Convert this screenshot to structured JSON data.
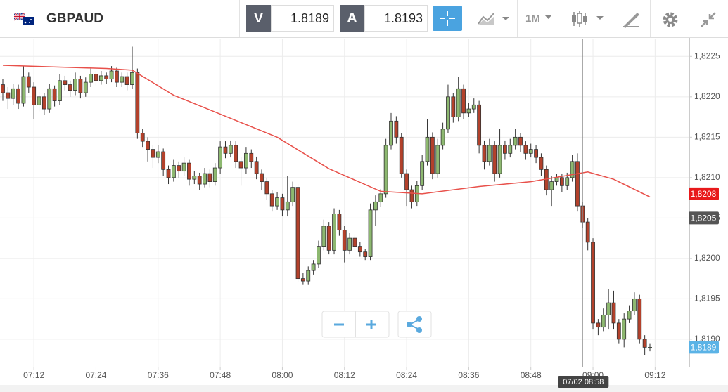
{
  "header": {
    "symbol": "GBPAUD",
    "bid_label": "V",
    "bid": 1.8189,
    "ask_label": "A",
    "ask": 1.8193,
    "interval": "1M"
  },
  "chart_data": {
    "type": "candlestick",
    "x": [
      "07:06",
      "07:07",
      "07:08",
      "07:09",
      "07:10",
      "07:11",
      "07:12",
      "07:13",
      "07:14",
      "07:15",
      "07:16",
      "07:17",
      "07:18",
      "07:19",
      "07:20",
      "07:21",
      "07:22",
      "07:23",
      "07:24",
      "07:25",
      "07:26",
      "07:27",
      "07:28",
      "07:29",
      "07:30",
      "07:31",
      "07:32",
      "07:33",
      "07:34",
      "07:35",
      "07:36",
      "07:37",
      "07:38",
      "07:39",
      "07:40",
      "07:41",
      "07:42",
      "07:43",
      "07:44",
      "07:45",
      "07:46",
      "07:47",
      "07:48",
      "07:49",
      "07:50",
      "07:51",
      "07:52",
      "07:53",
      "07:54",
      "07:55",
      "07:56",
      "07:57",
      "07:58",
      "07:59",
      "08:00",
      "08:01",
      "08:02",
      "08:03",
      "08:04",
      "08:05",
      "08:06",
      "08:07",
      "08:08",
      "08:09",
      "08:10",
      "08:11",
      "08:12",
      "08:13",
      "08:14",
      "08:15",
      "08:16",
      "08:17",
      "08:18",
      "08:19",
      "08:20",
      "08:21",
      "08:22",
      "08:23",
      "08:24",
      "08:25",
      "08:26",
      "08:27",
      "08:28",
      "08:29",
      "08:30",
      "08:31",
      "08:32",
      "08:33",
      "08:34",
      "08:35",
      "08:36",
      "08:37",
      "08:38",
      "08:39",
      "08:40",
      "08:41",
      "08:42",
      "08:43",
      "08:44",
      "08:45",
      "08:46",
      "08:47",
      "08:48",
      "08:49",
      "08:50",
      "08:51",
      "08:52",
      "08:53",
      "08:54",
      "08:55",
      "08:56",
      "08:57",
      "08:58",
      "08:59",
      "09:00",
      "09:01",
      "09:02",
      "09:03",
      "09:04",
      "09:05",
      "09:06",
      "09:07",
      "09:08",
      "09:09",
      "09:10",
      "09:11"
    ],
    "series": [
      {
        "type": "candlestick",
        "color_up": "#8db870",
        "color_down": "#b3412b",
        "values": [
          [
            1.82215,
            1.82222,
            1.82195,
            1.82205
          ],
          [
            1.82205,
            1.82212,
            1.82185,
            1.82198
          ],
          [
            1.82198,
            1.82216,
            1.8219,
            1.8221
          ],
          [
            1.8221,
            1.82215,
            1.82185,
            1.82192
          ],
          [
            1.82192,
            1.82238,
            1.82188,
            1.82225
          ],
          [
            1.82225,
            1.8223,
            1.82205,
            1.82212
          ],
          [
            1.82212,
            1.82218,
            1.82172,
            1.8219
          ],
          [
            1.8219,
            1.82206,
            1.82182,
            1.822
          ],
          [
            1.822,
            1.82205,
            1.82178,
            1.82185
          ],
          [
            1.82185,
            1.82216,
            1.8218,
            1.8221
          ],
          [
            1.8221,
            1.82214,
            1.82188,
            1.82195
          ],
          [
            1.82195,
            1.82228,
            1.8219,
            1.8222
          ],
          [
            1.8222,
            1.82226,
            1.82208,
            1.82215
          ],
          [
            1.82215,
            1.8222,
            1.822,
            1.82208
          ],
          [
            1.82208,
            1.8223,
            1.82202,
            1.82222
          ],
          [
            1.82222,
            1.82226,
            1.82198,
            1.82205
          ],
          [
            1.82205,
            1.82224,
            1.822,
            1.82218
          ],
          [
            1.82218,
            1.82235,
            1.82212,
            1.82228
          ],
          [
            1.82228,
            1.82232,
            1.82214,
            1.8222
          ],
          [
            1.8222,
            1.82232,
            1.82215,
            1.82226
          ],
          [
            1.82226,
            1.8223,
            1.82216,
            1.82222
          ],
          [
            1.82222,
            1.82238,
            1.82218,
            1.82232
          ],
          [
            1.82232,
            1.82236,
            1.82212,
            1.82218
          ],
          [
            1.82218,
            1.8223,
            1.82212,
            1.82225
          ],
          [
            1.82225,
            1.8223,
            1.82208,
            1.82215
          ],
          [
            1.82215,
            1.82262,
            1.8221,
            1.8223
          ],
          [
            1.8223,
            1.82235,
            1.82148,
            1.82155
          ],
          [
            1.82155,
            1.8216,
            1.82138,
            1.82145
          ],
          [
            1.82145,
            1.8215,
            1.8212,
            1.82135
          ],
          [
            1.82135,
            1.8214,
            1.82112,
            1.82125
          ],
          [
            1.82125,
            1.8214,
            1.82118,
            1.82132
          ],
          [
            1.82132,
            1.82136,
            1.82102,
            1.8211
          ],
          [
            1.8211,
            1.82115,
            1.82092,
            1.821
          ],
          [
            1.821,
            1.82122,
            1.82095,
            1.82115
          ],
          [
            1.82115,
            1.8212,
            1.821,
            1.82108
          ],
          [
            1.82108,
            1.82125,
            1.82102,
            1.82118
          ],
          [
            1.82118,
            1.82122,
            1.8209,
            1.82098
          ],
          [
            1.82098,
            1.82108,
            1.82092,
            1.82102
          ],
          [
            1.82102,
            1.82106,
            1.82085,
            1.82092
          ],
          [
            1.82092,
            1.82112,
            1.82088,
            1.82105
          ],
          [
            1.82105,
            1.8211,
            1.82088,
            1.82095
          ],
          [
            1.82095,
            1.82118,
            1.8209,
            1.82112
          ],
          [
            1.82112,
            1.82145,
            1.82105,
            1.82138
          ],
          [
            1.82138,
            1.82145,
            1.82124,
            1.8213
          ],
          [
            1.8213,
            1.82146,
            1.82125,
            1.8214
          ],
          [
            1.8214,
            1.82145,
            1.82112,
            1.8212
          ],
          [
            1.8212,
            1.82126,
            1.8209,
            1.82112
          ],
          [
            1.82112,
            1.82138,
            1.82105,
            1.8213
          ],
          [
            1.8213,
            1.82135,
            1.82112,
            1.8212
          ],
          [
            1.8212,
            1.82126,
            1.82098,
            1.82105
          ],
          [
            1.82105,
            1.8211,
            1.82085,
            1.82095
          ],
          [
            1.82095,
            1.821,
            1.82072,
            1.8208
          ],
          [
            1.8208,
            1.82085,
            1.82058,
            1.82065
          ],
          [
            1.82065,
            1.82082,
            1.8206,
            1.82075
          ],
          [
            1.82075,
            1.8208,
            1.82052,
            1.8206
          ],
          [
            1.8206,
            1.82102,
            1.82052,
            1.8207
          ],
          [
            1.8207,
            1.82095,
            1.82065,
            1.82088
          ],
          [
            1.82088,
            1.82092,
            1.8197,
            1.81975
          ],
          [
            1.81975,
            1.81982,
            1.81968,
            1.81972
          ],
          [
            1.81972,
            1.8199,
            1.81968,
            1.81985
          ],
          [
            1.81985,
            1.81998,
            1.8198,
            1.81993
          ],
          [
            1.81993,
            1.82022,
            1.81988,
            1.82015
          ],
          [
            1.82015,
            1.82048,
            1.8201,
            1.8204
          ],
          [
            1.8204,
            1.82045,
            1.82005,
            1.8201
          ],
          [
            1.8201,
            1.82062,
            1.82005,
            1.82055
          ],
          [
            1.82055,
            1.8206,
            1.82028,
            1.82035
          ],
          [
            1.82035,
            1.8204,
            1.81995,
            1.8201
          ],
          [
            1.8201,
            1.82032,
            1.82005,
            1.82025
          ],
          [
            1.82025,
            1.8203,
            1.8201,
            1.82015
          ],
          [
            1.82015,
            1.8202,
            1.82002,
            1.82008
          ],
          [
            1.82008,
            1.82012,
            1.81998,
            1.82002
          ],
          [
            1.82002,
            1.82068,
            1.81998,
            1.8206
          ],
          [
            1.8206,
            1.82078,
            1.8204,
            1.8207
          ],
          [
            1.8207,
            1.82086,
            1.82064,
            1.8208
          ],
          [
            1.8208,
            1.82148,
            1.82075,
            1.8214
          ],
          [
            1.8214,
            1.8218,
            1.82135,
            1.8217
          ],
          [
            1.8217,
            1.82176,
            1.82142,
            1.8215
          ],
          [
            1.8215,
            1.82155,
            1.821,
            1.82105
          ],
          [
            1.82105,
            1.8211,
            1.82065,
            1.82085
          ],
          [
            1.82085,
            1.8209,
            1.82062,
            1.8207
          ],
          [
            1.8207,
            1.82096,
            1.82065,
            1.8209
          ],
          [
            1.8209,
            1.82128,
            1.82085,
            1.8212
          ],
          [
            1.8212,
            1.82172,
            1.82115,
            1.8215
          ],
          [
            1.8215,
            1.82156,
            1.82098,
            1.82105
          ],
          [
            1.82105,
            1.82148,
            1.821,
            1.8214
          ],
          [
            1.8214,
            1.82168,
            1.82135,
            1.8216
          ],
          [
            1.8216,
            1.82215,
            1.82155,
            1.822
          ],
          [
            1.822,
            1.82205,
            1.82168,
            1.82175
          ],
          [
            1.82175,
            1.82225,
            1.8217,
            1.8221
          ],
          [
            1.8221,
            1.82215,
            1.82172,
            1.8218
          ],
          [
            1.8218,
            1.82192,
            1.82175,
            1.82185
          ],
          [
            1.82185,
            1.82198,
            1.8218,
            1.8219
          ],
          [
            1.8219,
            1.82195,
            1.8213,
            1.8214
          ],
          [
            1.8214,
            1.82146,
            1.8211,
            1.8212
          ],
          [
            1.8212,
            1.82148,
            1.82115,
            1.8214
          ],
          [
            1.8214,
            1.82145,
            1.82095,
            1.82105
          ],
          [
            1.82105,
            1.8216,
            1.821,
            1.8214
          ],
          [
            1.8214,
            1.82146,
            1.82122,
            1.8213
          ],
          [
            1.8213,
            1.82148,
            1.82125,
            1.8214
          ],
          [
            1.8214,
            1.8216,
            1.82135,
            1.8215
          ],
          [
            1.8215,
            1.82155,
            1.82132,
            1.8214
          ],
          [
            1.8214,
            1.82145,
            1.82122,
            1.8213
          ],
          [
            1.8213,
            1.82142,
            1.82125,
            1.82135
          ],
          [
            1.82135,
            1.8214,
            1.82118,
            1.82125
          ],
          [
            1.82125,
            1.8213,
            1.82102,
            1.8211
          ],
          [
            1.8211,
            1.82115,
            1.82078,
            1.82085
          ],
          [
            1.82085,
            1.82102,
            1.82065,
            1.82095
          ],
          [
            1.82095,
            1.82105,
            1.8209,
            1.821
          ],
          [
            1.821,
            1.82105,
            1.82082,
            1.8209
          ],
          [
            1.8209,
            1.82106,
            1.82085,
            1.821
          ],
          [
            1.821,
            1.82128,
            1.82095,
            1.8212
          ],
          [
            1.8212,
            1.8213,
            1.82058,
            1.82065
          ],
          [
            1.82065,
            1.8207,
            1.82038,
            1.82045
          ],
          [
            1.82045,
            1.8205,
            1.8201,
            1.8202
          ],
          [
            1.8202,
            1.82025,
            1.81912,
            1.8192
          ],
          [
            1.8192,
            1.81925,
            1.81905,
            1.81915
          ],
          [
            1.81915,
            1.81938,
            1.8191,
            1.8193
          ],
          [
            1.8193,
            1.81962,
            1.81912,
            1.81945
          ],
          [
            1.81945,
            1.8196,
            1.81912,
            1.8192
          ],
          [
            1.8192,
            1.81925,
            1.81895,
            1.819
          ],
          [
            1.819,
            1.81932,
            1.8189,
            1.81925
          ],
          [
            1.81925,
            1.81942,
            1.8192,
            1.81935
          ],
          [
            1.81935,
            1.81958,
            1.8193,
            1.8195
          ],
          [
            1.8195,
            1.81955,
            1.81895,
            1.819
          ],
          [
            1.819,
            1.81905,
            1.8188,
            1.8189
          ],
          [
            1.8189,
            1.81895,
            1.81885,
            1.8189
          ]
        ]
      },
      {
        "type": "line",
        "color": "#e8504a",
        "x": [
          "07:06",
          "07:26",
          "07:31",
          "07:39",
          "07:49",
          "07:59",
          "08:09",
          "08:19",
          "08:27",
          "08:38",
          "08:48",
          "08:59",
          "09:04",
          "09:11"
        ],
        "values": [
          1.82239,
          1.82235,
          1.82233,
          1.82202,
          1.82176,
          1.8215,
          1.82111,
          1.82083,
          1.8208,
          1.82089,
          1.82095,
          1.82107,
          1.82098,
          1.82076
        ]
      }
    ],
    "ylim": [
      1.81866,
      1.82272
    ],
    "yticks": [
      {
        "value": 1.8225,
        "label": "1,8225"
      },
      {
        "value": 1.822,
        "label": "1,8220"
      },
      {
        "value": 1.8215,
        "label": "1,8215"
      },
      {
        "value": 1.821,
        "label": "1,8210"
      },
      {
        "value": 1.8205,
        "label": "1,8205"
      },
      {
        "value": 1.82,
        "label": "1,8200"
      },
      {
        "value": 1.8195,
        "label": "1,8195"
      },
      {
        "value": 1.819,
        "label": "1,8190"
      }
    ],
    "xticks": [
      "07:12",
      "07:24",
      "07:36",
      "07:48",
      "08:00",
      "08:12",
      "08:24",
      "08:36",
      "08:48",
      "09:00",
      "09:12"
    ],
    "grid": true,
    "crosshair": {
      "x": "08:58",
      "x_label": "07/02 08:58",
      "y": {
        "value": 1.8205,
        "label": "1,8205"
      }
    },
    "ma_tag": {
      "value": 1.8208,
      "label": "1,8208",
      "color": "#e8191b"
    },
    "last_tag": {
      "value": 1.8189,
      "label": "1,8189",
      "color": "#5bb3e6"
    }
  }
}
